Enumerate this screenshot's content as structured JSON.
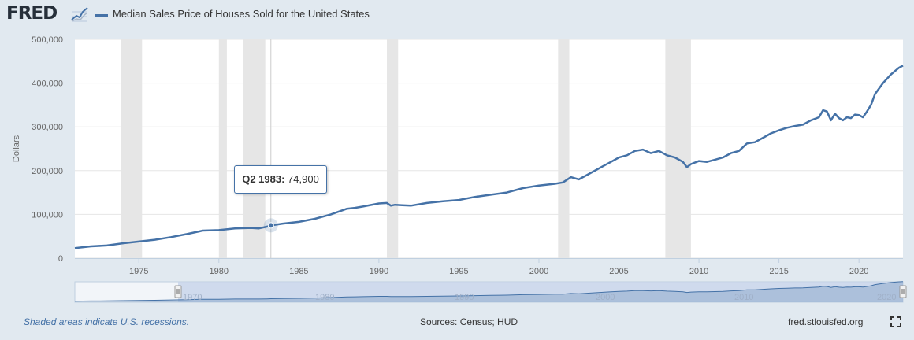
{
  "header": {
    "logo": "FRED",
    "logo_icon": "chart-trend-icon",
    "series_title": "Median Sales Price of Houses Sold for the United States"
  },
  "colors": {
    "background": "#e1e9f0",
    "plot_background": "#ffffff",
    "series": "#4572a7",
    "recession": "#e6e6e6",
    "navigator_fill": "#c6d3ea"
  },
  "tooltip": {
    "date": "Q2 1983:",
    "value": "74,900"
  },
  "footer": {
    "note": "Shaded areas indicate U.S. recessions.",
    "sources": "Sources: Census; HUD",
    "site": "fred.stlouisfed.org",
    "fullscreen_icon": "fullscreen-icon"
  },
  "chart_data": {
    "type": "line",
    "ylabel": "Dollars",
    "xlim": [
      1971.0,
      2022.75
    ],
    "ylim": [
      0,
      500000
    ],
    "y_ticks": [
      0,
      100000,
      200000,
      300000,
      400000,
      500000
    ],
    "y_tick_labels": [
      "0",
      "100,000",
      "200,000",
      "300,000",
      "400,000",
      "500,000"
    ],
    "x_ticks": [
      1975,
      1980,
      1985,
      1990,
      1995,
      2000,
      2005,
      2010,
      2015,
      2020
    ],
    "x_tick_labels": [
      "1975",
      "1980",
      "1985",
      "1990",
      "1995",
      "2000",
      "2005",
      "2010",
      "2015",
      "2020"
    ],
    "navigator_ticks": [
      "1970",
      "1980",
      "1990",
      "2000",
      "2010",
      "2020"
    ],
    "grid": true,
    "recessions": [
      [
        1973.9,
        1975.2
      ],
      [
        1980.0,
        1980.5
      ],
      [
        1981.5,
        1982.9
      ],
      [
        1990.5,
        1991.2
      ],
      [
        2001.2,
        2001.9
      ],
      [
        2007.9,
        2009.5
      ]
    ],
    "highlight": {
      "x": 1983.25,
      "y": 74900
    },
    "series": [
      {
        "name": "Median Sales Price of Houses Sold for the United States",
        "x": [
          1971.0,
          1971.5,
          1972.0,
          1973.0,
          1974.0,
          1975.0,
          1976.0,
          1977.0,
          1978.0,
          1979.0,
          1980.0,
          1981.0,
          1982.0,
          1982.5,
          1983.0,
          1983.25,
          1984.0,
          1985.0,
          1986.0,
          1987.0,
          1988.0,
          1988.5,
          1989.0,
          1990.0,
          1990.5,
          1990.75,
          1991.0,
          1992.0,
          1993.0,
          1994.0,
          1995.0,
          1996.0,
          1997.0,
          1998.0,
          1999.0,
          2000.0,
          2001.0,
          2001.5,
          2002.0,
          2002.5,
          2003.0,
          2004.0,
          2004.5,
          2005.0,
          2005.5,
          2006.0,
          2006.5,
          2007.0,
          2007.5,
          2008.0,
          2008.5,
          2009.0,
          2009.25,
          2009.5,
          2010.0,
          2010.5,
          2011.0,
          2011.5,
          2012.0,
          2012.5,
          2013.0,
          2013.5,
          2014.0,
          2014.5,
          2015.0,
          2015.5,
          2016.0,
          2016.5,
          2017.0,
          2017.5,
          2017.75,
          2018.0,
          2018.25,
          2018.5,
          2018.75,
          2019.0,
          2019.25,
          2019.5,
          2019.75,
          2020.0,
          2020.25,
          2020.5,
          2020.75,
          2021.0,
          2021.5,
          2022.0,
          2022.5,
          2022.75
        ],
        "y": [
          23000,
          25000,
          27000,
          29000,
          34000,
          38000,
          42000,
          48000,
          55000,
          63000,
          64000,
          68000,
          69000,
          68000,
          72000,
          74900,
          79000,
          83000,
          90000,
          100000,
          113000,
          115000,
          118000,
          125000,
          126000,
          120000,
          122000,
          120000,
          126000,
          130000,
          133000,
          140000,
          145000,
          150000,
          160000,
          166000,
          170000,
          173000,
          185000,
          180000,
          190000,
          210000,
          220000,
          230000,
          235000,
          245000,
          248000,
          240000,
          245000,
          235000,
          230000,
          220000,
          208000,
          215000,
          222000,
          220000,
          225000,
          230000,
          240000,
          245000,
          262000,
          265000,
          275000,
          285000,
          292000,
          298000,
          302000,
          305000,
          315000,
          322000,
          338000,
          335000,
          315000,
          330000,
          320000,
          315000,
          322000,
          320000,
          328000,
          327000,
          322000,
          335000,
          350000,
          375000,
          400000,
          420000,
          435000,
          440000
        ]
      }
    ]
  }
}
